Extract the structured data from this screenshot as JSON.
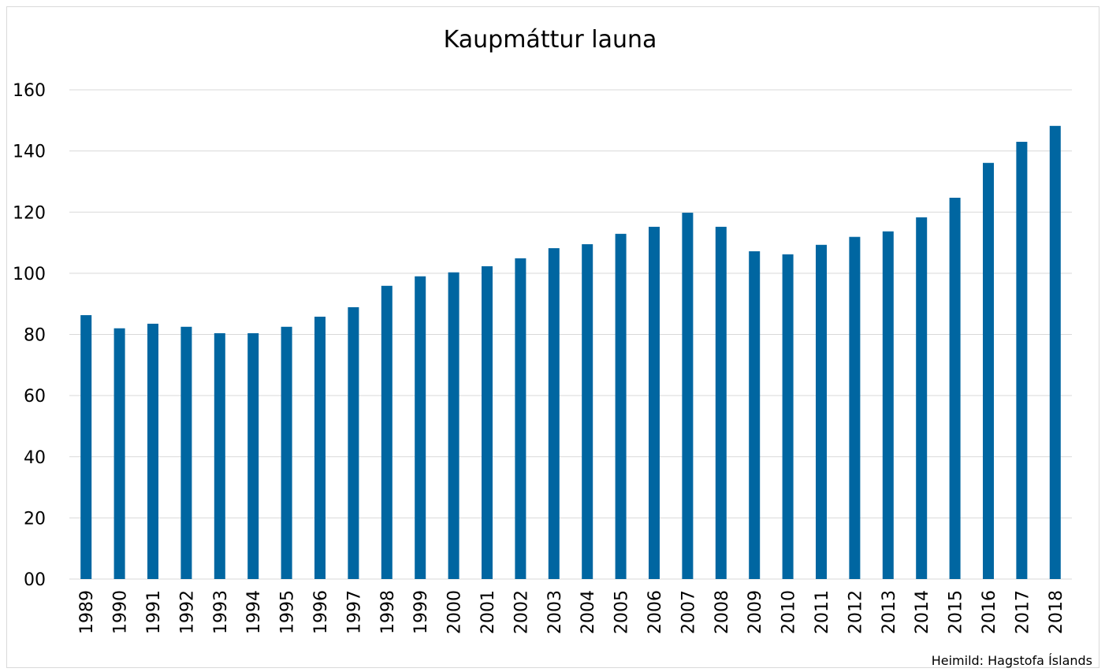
{
  "chart_data": {
    "type": "bar",
    "title": "Kaupmáttur launa",
    "categories": [
      "1989",
      "1990",
      "1991",
      "1992",
      "1993",
      "1994",
      "1995",
      "1996",
      "1997",
      "1998",
      "1999",
      "2000",
      "2001",
      "2002",
      "2003",
      "2004",
      "2005",
      "2006",
      "2007",
      "2008",
      "2009",
      "2010",
      "2011",
      "2012",
      "2013",
      "2014",
      "2015",
      "2016",
      "2017",
      "2018"
    ],
    "values": [
      86.3,
      82,
      83.5,
      82.5,
      80.4,
      80.4,
      82.5,
      85.8,
      88.9,
      95.9,
      99,
      100.3,
      102.3,
      104.9,
      108.2,
      109.5,
      112.9,
      115.2,
      119.8,
      115.2,
      107.2,
      106.2,
      109.3,
      111.9,
      113.7,
      118.3,
      124.7,
      136.1,
      143,
      148.2
    ],
    "color": "#0066a1",
    "ylim": [
      0,
      160
    ],
    "yticks": [
      {
        "value": 0,
        "label": "00"
      },
      20,
      40,
      60,
      80,
      100,
      120,
      140,
      160
    ],
    "grid": true,
    "source": "Heimild: Hagstofa Íslands"
  }
}
